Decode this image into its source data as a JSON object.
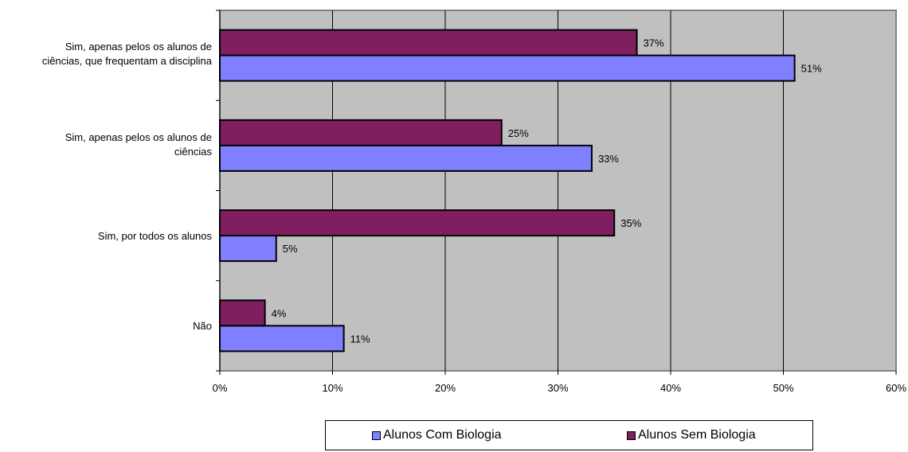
{
  "chart_data": {
    "type": "bar",
    "orientation": "horizontal",
    "categories": [
      "Sim, apenas pelos os alunos de\nciências, que frequentam a disciplina",
      "Sim, apenas pelos os alunos de\nciências",
      "Sim, por todos os alunos",
      "Não"
    ],
    "series": [
      {
        "name": "Alunos Sem Biologia",
        "values": [
          37,
          25,
          35,
          4
        ],
        "data_labels": [
          "37%",
          "25%",
          "35%",
          "4%"
        ],
        "color": "#7F1F5F"
      },
      {
        "name": "Alunos Com Biologia",
        "values": [
          51,
          33,
          5,
          11
        ],
        "data_labels": [
          "51%",
          "33%",
          "5%",
          "11%"
        ],
        "color": "#7F7FFF"
      }
    ],
    "xlim": [
      0,
      60
    ],
    "xticks": [
      "0%",
      "10%",
      "20%",
      "30%",
      "40%",
      "50%",
      "60%"
    ],
    "title": "",
    "xlabel": "",
    "ylabel": "",
    "grid": "vertical",
    "plot_background": "#C0C0C0",
    "legend": {
      "position": "bottom",
      "entries": [
        "Alunos Com Biologia",
        "Alunos Sem Biologia"
      ]
    }
  }
}
